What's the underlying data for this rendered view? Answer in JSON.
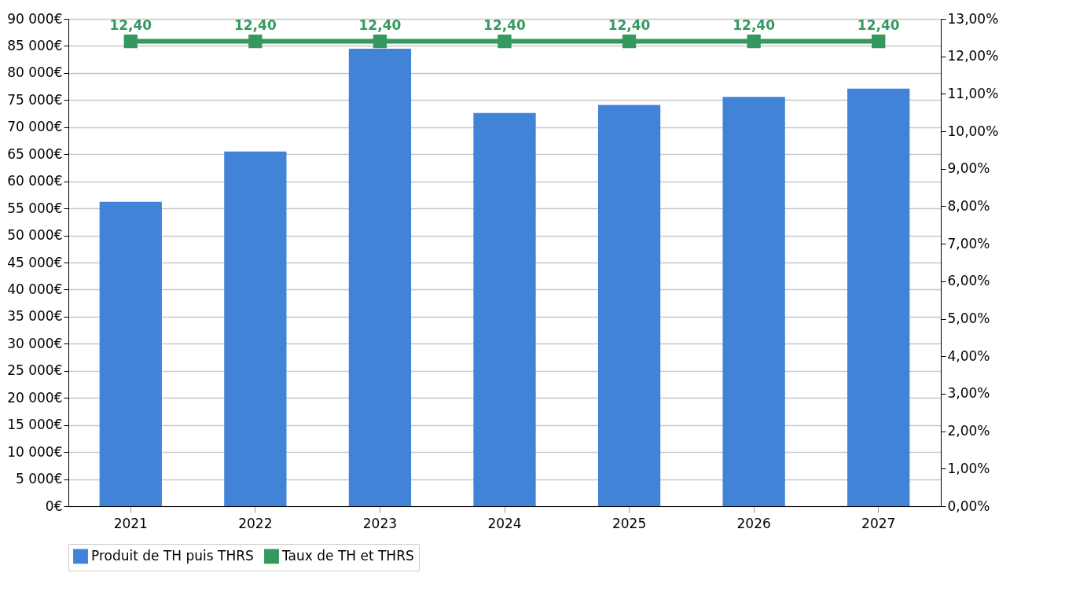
{
  "chart_data": {
    "type": "bar",
    "categories": [
      "2021",
      "2022",
      "2023",
      "2024",
      "2025",
      "2026",
      "2027"
    ],
    "series": [
      {
        "name": "Produit de TH puis THRS",
        "color": "#4183d7",
        "values": [
          56200,
          65500,
          84500,
          72600,
          74100,
          75600,
          77100
        ]
      },
      {
        "name": "Taux de TH et THRS",
        "type": "line",
        "axis": "y2",
        "color": "#35995f",
        "marker": "square",
        "values": [
          12.4,
          12.4,
          12.4,
          12.4,
          12.4,
          12.4,
          12.4
        ],
        "value_labels": [
          "12,40",
          "12,40",
          "12,40",
          "12,40",
          "12,40",
          "12,40",
          "12,40"
        ]
      }
    ],
    "ylim": [
      0,
      90000
    ],
    "yticks": [
      {
        "value": 0,
        "label": "0€"
      },
      {
        "value": 5000,
        "label": "5 000€"
      },
      {
        "value": 10000,
        "label": "10 000€"
      },
      {
        "value": 15000,
        "label": "15 000€"
      },
      {
        "value": 20000,
        "label": "20 000€"
      },
      {
        "value": 25000,
        "label": "25 000€"
      },
      {
        "value": 30000,
        "label": "30 000€"
      },
      {
        "value": 35000,
        "label": "35 000€"
      },
      {
        "value": 40000,
        "label": "40 000€"
      },
      {
        "value": 45000,
        "label": "45 000€"
      },
      {
        "value": 50000,
        "label": "50 000€"
      },
      {
        "value": 55000,
        "label": "55 000€"
      },
      {
        "value": 60000,
        "label": "60 000€"
      },
      {
        "value": 65000,
        "label": "65 000€"
      },
      {
        "value": 70000,
        "label": "70 000€"
      },
      {
        "value": 75000,
        "label": "75 000€"
      },
      {
        "value": 80000,
        "label": "80 000€"
      },
      {
        "value": 85000,
        "label": "85 000€"
      },
      {
        "value": 90000,
        "label": "90 000€"
      }
    ],
    "y2lim": [
      0,
      13
    ],
    "y2ticks": [
      {
        "value": 0,
        "label": "0,00%"
      },
      {
        "value": 1,
        "label": "1,00%"
      },
      {
        "value": 2,
        "label": "2,00%"
      },
      {
        "value": 3,
        "label": "3,00%"
      },
      {
        "value": 4,
        "label": "4,00%"
      },
      {
        "value": 5,
        "label": "5,00%"
      },
      {
        "value": 6,
        "label": "6,00%"
      },
      {
        "value": 7,
        "label": "7,00%"
      },
      {
        "value": 8,
        "label": "8,00%"
      },
      {
        "value": 9,
        "label": "9,00%"
      },
      {
        "value": 10,
        "label": "10,00%"
      },
      {
        "value": 11,
        "label": "11,00%"
      },
      {
        "value": 12,
        "label": "12,00%"
      },
      {
        "value": 13,
        "label": "13,00%"
      }
    ],
    "grid": "y",
    "legend": "bottom"
  }
}
